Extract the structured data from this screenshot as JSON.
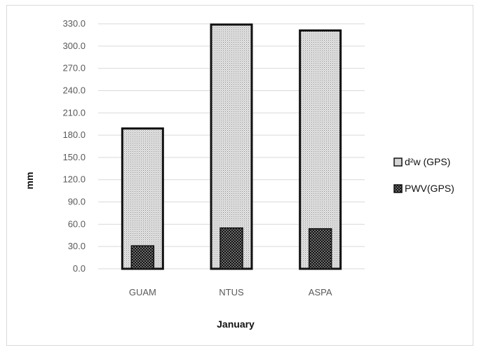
{
  "chart_data": {
    "type": "bar",
    "categories": [
      "GUAM",
      "NTUS",
      "ASPA"
    ],
    "series": [
      {
        "name": "d²w (GPS)",
        "values": [
          189,
          329,
          321
        ],
        "color": "#d4d4d4",
        "pattern": "dots"
      },
      {
        "name": "PWV(GPS)",
        "values": [
          31,
          55,
          54
        ],
        "color": "#1a1a1a",
        "pattern": "checker"
      }
    ],
    "stacked": false,
    "overlap": true,
    "title": "",
    "xlabel": "January",
    "ylabel": "mm",
    "ylim": [
      0,
      330
    ],
    "yticks": [
      "0.0",
      "30.0",
      "60.0",
      "90.0",
      "120.0",
      "150.0",
      "180.0",
      "210.0",
      "240.0",
      "270.0",
      "300.0",
      "330.0"
    ],
    "grid": true,
    "legend_position": "right"
  }
}
